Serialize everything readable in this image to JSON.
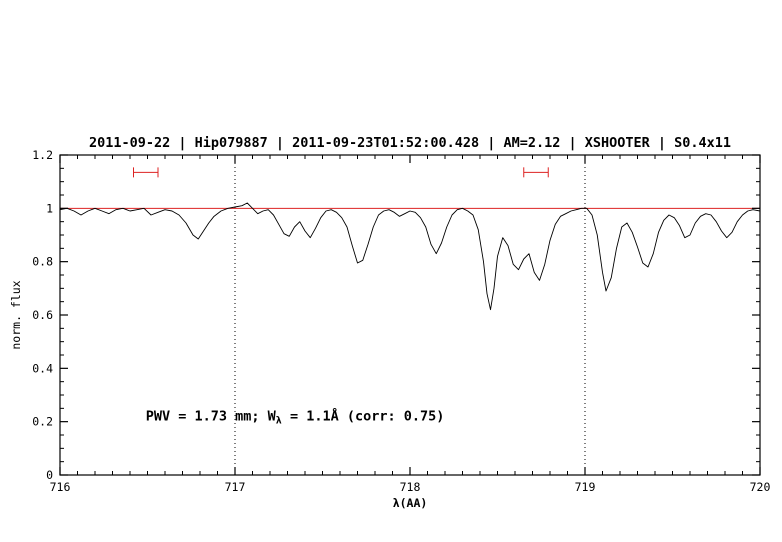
{
  "page": {
    "background": "#ffffff"
  },
  "chart_data": {
    "type": "line",
    "title": "2011-09-22 | Hip079887 | 2011-09-23T01:52:00.428 | AM=2.12 | XSHOOTER | S0.4x11",
    "title_color": "#0000e6",
    "xlabel": "λ(AA)",
    "ylabel": "norm. flux",
    "xlim": [
      716,
      720
    ],
    "ylim": [
      0,
      1.2
    ],
    "grid": "off",
    "legend": "none",
    "xticks": {
      "major": [
        716,
        717,
        718,
        719,
        720
      ],
      "labels": [
        "716",
        "717",
        "718",
        "719",
        "720"
      ],
      "minor_step": 0.1
    },
    "yticks": {
      "major": [
        0,
        0.2,
        0.4,
        0.6,
        0.8,
        1.0,
        1.2
      ],
      "labels": [
        "0",
        "0.2",
        "0.4",
        "0.6",
        "0.8",
        "1",
        "1.2"
      ],
      "minor_step": 0.05
    },
    "vlines": {
      "positions": [
        717,
        719
      ],
      "style": "dotted",
      "color": "#000000"
    },
    "continuum_line": {
      "y": 1.0,
      "color": "#dd2222"
    },
    "range_markers": {
      "color": "#dd2222",
      "items": [
        {
          "x1": 716.42,
          "x2": 716.56,
          "y": 1.135
        },
        {
          "x1": 718.65,
          "x2": 718.79,
          "y": 1.135
        }
      ]
    },
    "annotation": {
      "x": 716.49,
      "y": 0.205,
      "pre": "PWV = 1.73 mm; W",
      "sub": "λ",
      "post": " = 1.1Å (corr: 0.75)",
      "color": "#0000e6"
    },
    "series": [
      {
        "name": "spectrum",
        "color": "#000000",
        "x": [
          716.0,
          716.04,
          716.08,
          716.12,
          716.16,
          716.2,
          716.24,
          716.28,
          716.32,
          716.36,
          716.4,
          716.44,
          716.48,
          716.52,
          716.56,
          716.6,
          716.64,
          716.68,
          716.72,
          716.76,
          716.79,
          716.82,
          716.85,
          716.88,
          716.92,
          716.96,
          717.0,
          717.04,
          717.07,
          717.1,
          717.13,
          717.16,
          717.19,
          717.22,
          717.25,
          717.28,
          717.31,
          717.34,
          717.37,
          717.4,
          717.43,
          717.46,
          717.49,
          717.52,
          717.55,
          717.58,
          717.61,
          717.64,
          717.67,
          717.7,
          717.73,
          717.76,
          717.79,
          717.82,
          717.85,
          717.88,
          717.91,
          717.94,
          717.97,
          718.0,
          718.03,
          718.06,
          718.09,
          718.12,
          718.15,
          718.18,
          718.21,
          718.24,
          718.27,
          718.3,
          718.33,
          718.36,
          718.39,
          718.42,
          718.44,
          718.46,
          718.48,
          718.5,
          718.53,
          718.56,
          718.59,
          718.62,
          718.65,
          718.68,
          718.71,
          718.74,
          718.77,
          718.8,
          718.83,
          718.86,
          718.89,
          718.92,
          718.95,
          718.98,
          719.01,
          719.04,
          719.07,
          719.1,
          719.12,
          719.15,
          719.18,
          719.21,
          719.24,
          719.27,
          719.3,
          719.33,
          719.36,
          719.39,
          719.42,
          719.45,
          719.48,
          719.51,
          719.54,
          719.57,
          719.6,
          719.63,
          719.66,
          719.69,
          719.72,
          719.75,
          719.78,
          719.81,
          719.84,
          719.87,
          719.9,
          719.93,
          719.96,
          720.0
        ],
        "y": [
          0.995,
          1.0,
          0.99,
          0.975,
          0.99,
          1.0,
          0.99,
          0.98,
          0.995,
          1.0,
          0.99,
          0.995,
          1.0,
          0.975,
          0.985,
          0.995,
          0.99,
          0.975,
          0.945,
          0.9,
          0.885,
          0.915,
          0.945,
          0.97,
          0.99,
          1.0,
          1.005,
          1.01,
          1.02,
          1.0,
          0.98,
          0.99,
          0.995,
          0.975,
          0.94,
          0.905,
          0.895,
          0.93,
          0.95,
          0.915,
          0.89,
          0.925,
          0.965,
          0.99,
          0.995,
          0.985,
          0.965,
          0.93,
          0.86,
          0.795,
          0.805,
          0.865,
          0.93,
          0.975,
          0.99,
          0.995,
          0.985,
          0.97,
          0.98,
          0.99,
          0.985,
          0.965,
          0.93,
          0.865,
          0.83,
          0.87,
          0.93,
          0.975,
          0.995,
          1.0,
          0.99,
          0.975,
          0.92,
          0.8,
          0.68,
          0.62,
          0.7,
          0.82,
          0.89,
          0.86,
          0.79,
          0.77,
          0.81,
          0.83,
          0.76,
          0.73,
          0.79,
          0.88,
          0.94,
          0.97,
          0.98,
          0.99,
          0.995,
          1.0,
          1.0,
          0.975,
          0.9,
          0.76,
          0.69,
          0.74,
          0.85,
          0.93,
          0.945,
          0.91,
          0.855,
          0.795,
          0.78,
          0.83,
          0.91,
          0.955,
          0.975,
          0.965,
          0.935,
          0.89,
          0.9,
          0.945,
          0.97,
          0.98,
          0.975,
          0.95,
          0.915,
          0.89,
          0.91,
          0.95,
          0.975,
          0.99,
          0.995,
          0.99
        ]
      }
    ]
  }
}
